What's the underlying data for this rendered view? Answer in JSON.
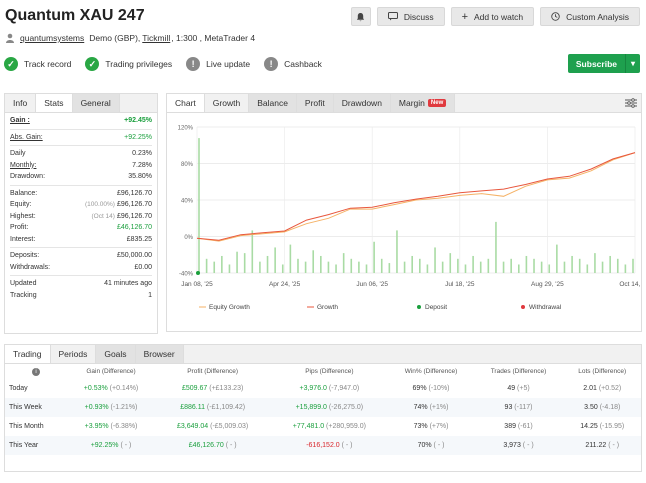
{
  "page": {
    "title": "Quantum XAU 247"
  },
  "actions": {
    "discuss": "Discuss",
    "watch": "Add to watch",
    "custom": "Custom Analysis"
  },
  "sub": {
    "user": "quantumsystems",
    "account": "Demo (GBP),",
    "broker": "Tickmill",
    "rest": ", 1:300 , MetaTrader 4"
  },
  "badges": [
    "Track record",
    "Trading privileges",
    "Live update",
    "Cashback"
  ],
  "subscribe": "Subscribe",
  "left_tabs": [
    "Info",
    "Stats",
    "General"
  ],
  "stats": {
    "gain_k": "Gain :",
    "gain_v": "+92.45%",
    "abs_k": "Abs. Gain:",
    "abs_v": "+92.25%",
    "daily_k": "Daily",
    "daily_v": "0.23%",
    "monthly_k": "Monthly:",
    "monthly_v": "7.28%",
    "dd_k": "Drawdown:",
    "dd_v": "35.80%",
    "bal_k": "Balance:",
    "bal_v": "£96,126.70",
    "eq_k": "Equity:",
    "eq_pre": "(100.00%)",
    "eq_v": "£96,126.70",
    "hi_k": "Highest:",
    "hi_pre": "(Oct 14)",
    "hi_v": "£96,126.70",
    "pr_k": "Profit:",
    "pr_v": "£46,126.70",
    "in_k": "Interest:",
    "in_v": "£835.25",
    "dep_k": "Deposits:",
    "dep_v": "£50,000.00",
    "wd_k": "Withdrawals:",
    "wd_v": "£0.00",
    "up_k": "Updated",
    "up_v": "41 minutes ago",
    "tr_k": "Tracking",
    "tr_v": "1"
  },
  "chart_tabs": [
    "Chart",
    "Growth",
    "Balance",
    "Profit",
    "Drawdown",
    "Margin"
  ],
  "chart_new": "New",
  "chart_data": {
    "type": "line",
    "x_ticks": [
      "Jan 08, '25",
      "Apr 24, '25",
      "Jun 06, '25",
      "Jul 18, '25",
      "Aug 29, '25",
      "Oct 14, '25"
    ],
    "y_ticks": [
      "120%",
      "80%",
      "40%",
      "0%",
      "-40%"
    ],
    "ylim": [
      -40,
      120
    ],
    "x": [
      0,
      5,
      10,
      15,
      20,
      25,
      30,
      35,
      40,
      45,
      50,
      55,
      60,
      65,
      70,
      75,
      80,
      85,
      90,
      95,
      100
    ],
    "series": [
      {
        "name": "Equity Growth",
        "color": "#f5b266",
        "values": [
          -2,
          -5,
          1,
          3,
          5,
          14,
          20,
          30,
          30,
          35,
          40,
          42,
          45,
          47,
          44,
          55,
          62,
          64,
          72,
          84,
          92
        ]
      },
      {
        "name": "Growth",
        "color": "#e8573d",
        "values": [
          -2,
          -4,
          2,
          4,
          6,
          18,
          24,
          31,
          32,
          37,
          41,
          44,
          48,
          50,
          52,
          57,
          63,
          66,
          74,
          85,
          92
        ]
      }
    ],
    "bars": [
      95,
      10,
      8,
      12,
      6,
      15,
      14,
      30,
      8,
      12,
      18,
      6,
      20,
      10,
      8,
      16,
      12,
      8,
      6,
      14,
      10,
      8,
      6,
      22,
      10,
      7,
      30,
      8,
      12,
      10,
      6,
      18,
      8,
      14,
      10,
      6,
      12,
      8,
      10,
      36,
      8,
      10,
      6,
      12,
      10,
      8,
      6,
      20,
      8,
      12,
      10,
      6,
      14,
      8,
      12,
      10,
      6,
      10
    ],
    "legend": [
      "Equity Growth",
      "Growth",
      "Deposit",
      "Withdrawal"
    ],
    "legend_colors": [
      "#f5b266",
      "#e8573d",
      "#1a9f3d",
      "#e0393e"
    ]
  },
  "bottom_tabs": [
    "Trading",
    "Periods",
    "Goals",
    "Browser"
  ],
  "table": {
    "headers": [
      "Gain (Difference)",
      "Profit (Difference)",
      "Pips (Difference)",
      "Win% (Difference)",
      "Trades (Difference)",
      "Lots (Difference)"
    ],
    "rows": [
      {
        "label": "Today",
        "gain": "+0.53%",
        "gain_d": "(+0.14%)",
        "profit": "£509.67",
        "profit_d": "(+£133.23)",
        "pips": "+3,976.0",
        "pips_d": "(-7,947.0)",
        "win": "69%",
        "win_d": "(-10%)",
        "trades": "49",
        "trades_d": "(+5)",
        "lots": "2.01",
        "lots_d": "(+0.52)"
      },
      {
        "label": "This Week",
        "gain": "+0.93%",
        "gain_d": "(-1.21%)",
        "profit": "£886.11",
        "profit_d": "(-£1,109.42)",
        "pips": "+15,899.0",
        "pips_d": "(-26,275.0)",
        "win": "74%",
        "win_d": "(+1%)",
        "trades": "93",
        "trades_d": "(-117)",
        "lots": "3.50",
        "lots_d": "(-4.18)"
      },
      {
        "label": "This Month",
        "gain": "+3.95%",
        "gain_d": "(-6.38%)",
        "profit": "£3,649.04",
        "profit_d": "(-£5,009.03)",
        "pips": "+77,481.0",
        "pips_d": "(+280,959.0)",
        "win": "73%",
        "win_d": "(+7%)",
        "trades": "389",
        "trades_d": "(-61)",
        "lots": "14.25",
        "lots_d": "(-15.95)"
      },
      {
        "label": "This Year",
        "gain": "+92.25%",
        "gain_d": "( - )",
        "profit": "£46,126.70",
        "profit_d": "( - )",
        "pips": "-616,152.0",
        "pips_d": "( - )",
        "win": "70%",
        "win_d": "( - )",
        "trades": "3,973",
        "trades_d": "( - )",
        "lots": "211.22",
        "lots_d": "( - )"
      }
    ]
  }
}
